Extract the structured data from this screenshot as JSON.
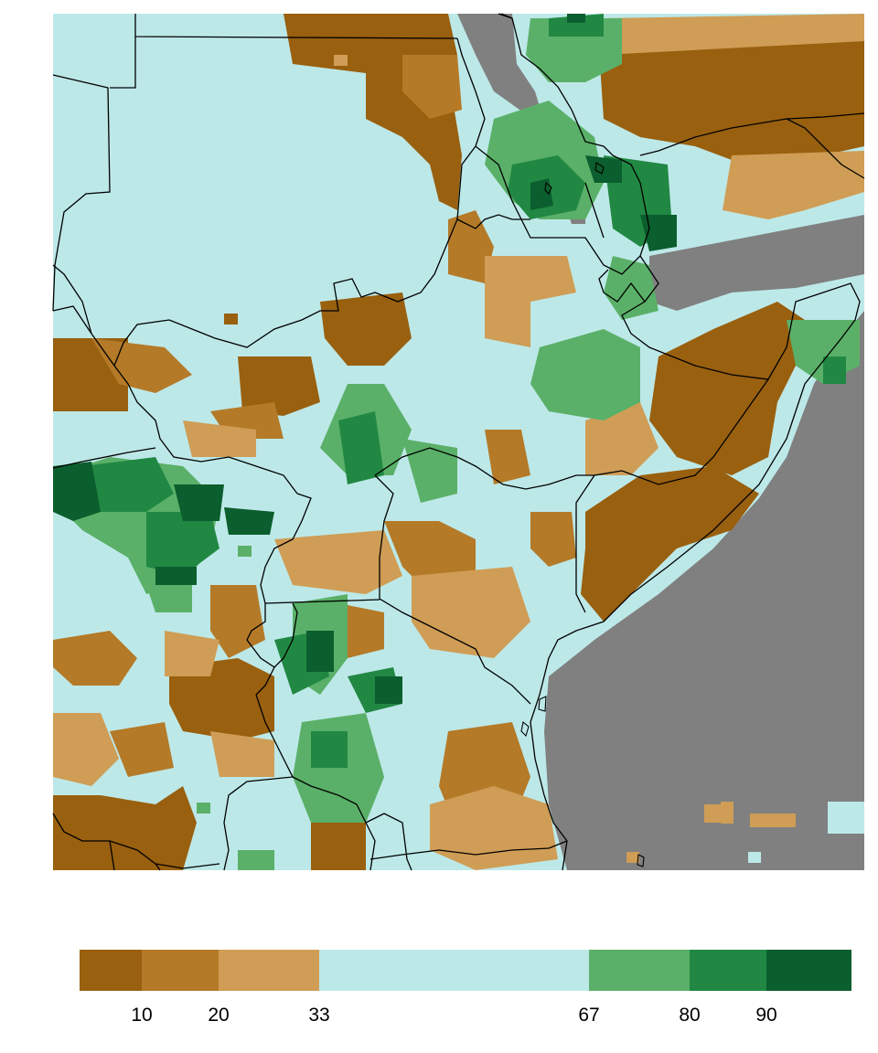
{
  "map": {
    "ocean_color": "#808080",
    "missing_color": "#808080",
    "border_color": "#000000"
  },
  "legend": {
    "bins": [
      {
        "color": "#99600f",
        "range": "<10"
      },
      {
        "color": "#b47a28",
        "range": "10-20"
      },
      {
        "color": "#cf9d55",
        "range": "20-33"
      },
      {
        "color": "#bde8e8",
        "range": "33-67"
      },
      {
        "color": "#5ab068",
        "range": "67-80"
      },
      {
        "color": "#218843",
        "range": "80-90"
      },
      {
        "color": "#0b5e2d",
        "range": ">90"
      }
    ],
    "ticks": [
      "10",
      "20",
      "33",
      "67",
      "80",
      "90"
    ]
  }
}
